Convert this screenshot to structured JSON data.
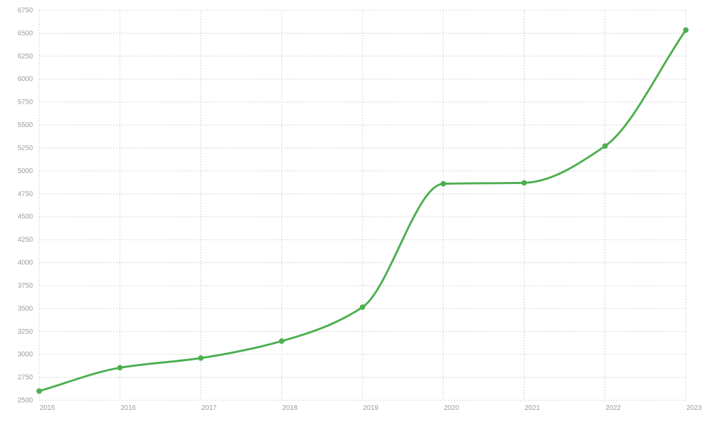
{
  "chart_data": {
    "type": "line",
    "title": "",
    "xlabel": "",
    "ylabel": "",
    "x": [
      2015,
      2016,
      2017,
      2018,
      2019,
      2020,
      2021,
      2022,
      2023
    ],
    "x_tick_labels": [
      "2015",
      "2016",
      "2017",
      "2018",
      "2019",
      "2020",
      "2021",
      "2022",
      "2023"
    ],
    "y_ticks": [
      2500,
      2750,
      3000,
      3250,
      3500,
      3750,
      4000,
      4250,
      4500,
      4750,
      5000,
      5250,
      5500,
      5750,
      6000,
      6250,
      6500,
      6750
    ],
    "y_tick_labels": [
      "2500",
      "2750",
      "3000",
      "3250",
      "3500",
      "3750",
      "4000",
      "4250",
      "4500",
      "4750",
      "5000",
      "5250",
      "5500",
      "5750",
      "6000",
      "6250",
      "6500",
      "6750"
    ],
    "ylim": [
      2500,
      6750
    ],
    "xlim": [
      2015,
      2023
    ],
    "grid": true,
    "legend": "none",
    "series": [
      {
        "values": [
          2600,
          2855,
          2960,
          3145,
          3515,
          4860,
          4870,
          5270,
          6535
        ],
        "color": "#4caf50"
      }
    ]
  }
}
